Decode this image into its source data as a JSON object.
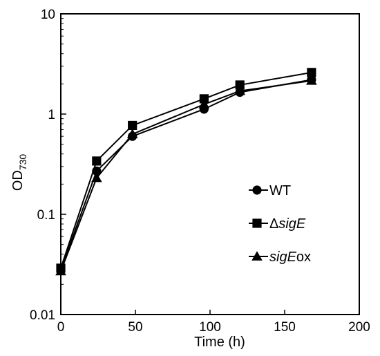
{
  "chart_data": {
    "type": "line",
    "xlabel": "Time (h)",
    "ylabel": {
      "main": "OD",
      "subscript": "730"
    },
    "xlim": [
      0,
      200
    ],
    "ylim": [
      0.01,
      10
    ],
    "yscale": "log",
    "xticks": [
      "0",
      "50",
      "100",
      "150",
      "200"
    ],
    "yticks": [
      "0.01",
      "0.1",
      "1",
      "10"
    ],
    "grid": false,
    "legend_position": "center-right",
    "x": [
      0,
      24,
      48,
      96,
      120,
      168
    ],
    "series": [
      {
        "name": "WT",
        "name_parts": [
          {
            "text": "WT",
            "italic": false
          }
        ],
        "marker": "circle",
        "values": [
          0.028,
          0.27,
          0.6,
          1.12,
          1.65,
          2.2
        ]
      },
      {
        "name": "ΔsigE",
        "name_parts": [
          {
            "text": "Δ",
            "italic": false
          },
          {
            "text": "sigE",
            "italic": true
          }
        ],
        "marker": "square",
        "values": [
          0.029,
          0.34,
          0.77,
          1.42,
          1.95,
          2.6
        ]
      },
      {
        "name": "sigEox",
        "name_parts": [
          {
            "text": "sigE",
            "italic": true
          },
          {
            "text": "ox",
            "italic": false
          }
        ],
        "marker": "triangle",
        "values": [
          0.027,
          0.23,
          0.63,
          1.25,
          1.7,
          2.15
        ]
      }
    ],
    "colors": {
      "line": "#000000",
      "marker": "#000000"
    }
  }
}
